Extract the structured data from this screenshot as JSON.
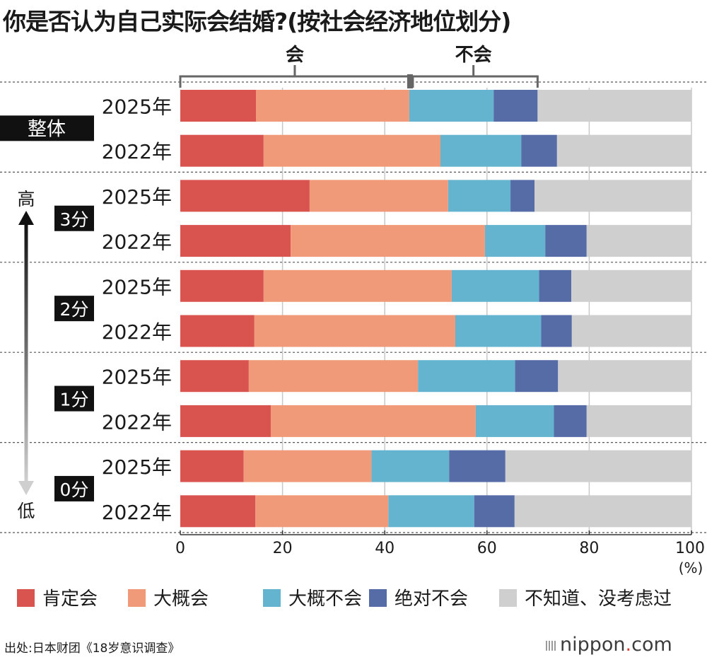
{
  "title": "你是否认为自己实际会结婚?(按社会经济地位划分)",
  "source": "出处:日本财团《18岁意识调查》",
  "brand": {
    "name": "nippon",
    "dot": ".",
    "tld": "com"
  },
  "brackets": {
    "yes_label": "会",
    "no_label": "不会"
  },
  "axis_arrow": {
    "top_label": "高",
    "bottom_label": "低"
  },
  "chart_data": {
    "type": "bar",
    "orientation": "horizontal",
    "stacked": true,
    "percent_unit": "(%)",
    "xlim": [
      0,
      100
    ],
    "x_ticks": [
      0,
      20,
      40,
      60,
      80,
      100
    ],
    "grid": true,
    "legend_position": "bottom",
    "series_names": [
      "肯定会",
      "大概会",
      "大概不会",
      "绝对不会",
      "不知道、没考虑过"
    ],
    "colors": [
      "#d9534f",
      "#f19a79",
      "#64b4cf",
      "#566ca6",
      "#cfcfcf"
    ],
    "groups": [
      {
        "label": "整体",
        "rows": [
          {
            "year": "2025年",
            "values": [
              14.8,
              30.0,
              16.5,
              8.6,
              30.1
            ]
          },
          {
            "year": "2022年",
            "values": [
              16.3,
              34.6,
              15.8,
              7.0,
              26.3
            ]
          }
        ]
      },
      {
        "label": "3分",
        "rows": [
          {
            "year": "2025年",
            "values": [
              25.3,
              27.1,
              12.2,
              4.7,
              30.7
            ]
          },
          {
            "year": "2022年",
            "values": [
              21.6,
              38.0,
              11.8,
              8.1,
              20.5
            ]
          }
        ]
      },
      {
        "label": "2分",
        "rows": [
          {
            "year": "2025年",
            "values": [
              16.3,
              36.8,
              17.1,
              6.3,
              23.5
            ]
          },
          {
            "year": "2022年",
            "values": [
              14.5,
              39.3,
              16.8,
              6.0,
              23.4
            ]
          }
        ]
      },
      {
        "label": "1分",
        "rows": [
          {
            "year": "2025年",
            "values": [
              13.4,
              33.1,
              19.0,
              8.4,
              26.1
            ]
          },
          {
            "year": "2022年",
            "values": [
              17.7,
              40.1,
              15.3,
              6.4,
              20.5
            ]
          }
        ]
      },
      {
        "label": "0分",
        "rows": [
          {
            "year": "2025年",
            "values": [
              12.4,
              25.0,
              15.2,
              11.0,
              36.4
            ]
          },
          {
            "year": "2022年",
            "values": [
              14.7,
              26.0,
              16.8,
              7.9,
              34.6
            ]
          }
        ]
      }
    ]
  }
}
